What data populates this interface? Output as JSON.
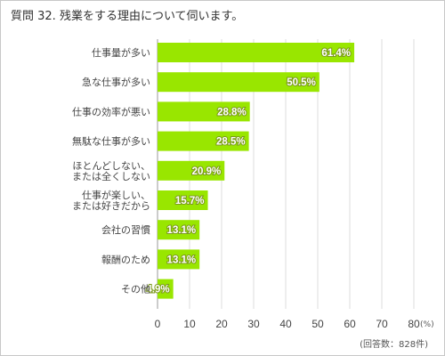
{
  "title": "質問 32. 残業をする理由について伺います。",
  "note": "(回答数：828件)",
  "chart_data": {
    "type": "bar",
    "orientation": "horizontal",
    "title": "質問 32. 残業をする理由について伺います。",
    "categories": [
      [
        "仕事量が多い"
      ],
      [
        "急な仕事が多い"
      ],
      [
        "仕事の効率が悪い"
      ],
      [
        "無駄な仕事が多い"
      ],
      [
        "ほとんどしない、",
        "または全くしない"
      ],
      [
        "仕事が楽しい、",
        "または好きだから"
      ],
      [
        "会社の習慣"
      ],
      [
        "報酬のため"
      ],
      [
        "その他"
      ]
    ],
    "values": [
      61.4,
      50.5,
      28.8,
      28.5,
      20.9,
      15.7,
      13.1,
      13.1,
      4.9
    ],
    "value_labels": [
      "61.4%",
      "50.5%",
      "28.8%",
      "28.5%",
      "20.9%",
      "15.7%",
      "13.1%",
      "13.1%",
      "4.9%"
    ],
    "xlim": [
      0,
      80
    ],
    "xticks": [
      0,
      10,
      20,
      30,
      40,
      50,
      60,
      70,
      80
    ],
    "xlabel": "(%)",
    "bar_color": "#99e600",
    "grid": true
  }
}
